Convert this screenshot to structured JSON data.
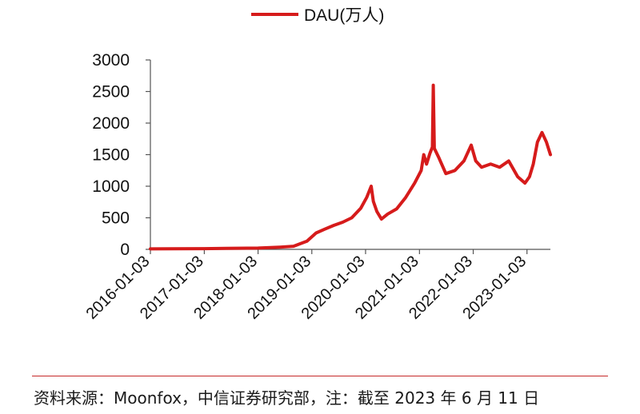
{
  "chart_data": {
    "type": "line",
    "legend": {
      "label": "DAU(万人)",
      "position": "top-center"
    },
    "ylim": [
      0,
      3000
    ],
    "yticks": [
      0,
      500,
      1000,
      1500,
      2000,
      2500,
      3000
    ],
    "ytick_labels": [
      "0",
      "500",
      "1000",
      "1500",
      "2000",
      "2500",
      "3000"
    ],
    "xlim": [
      "2016-01-03",
      "2023-06-11"
    ],
    "xticks": [
      "2016-01-03",
      "2017-01-03",
      "2018-01-03",
      "2019-01-03",
      "2020-01-03",
      "2021-01-03",
      "2022-01-03",
      "2023-01-03"
    ],
    "grid": false,
    "series": [
      {
        "name": "DAU(万人)",
        "color": "#d61b1b",
        "points": [
          [
            "2016-01-03",
            8
          ],
          [
            "2016-06-01",
            9
          ],
          [
            "2017-01-03",
            12
          ],
          [
            "2017-06-01",
            15
          ],
          [
            "2018-01-03",
            20
          ],
          [
            "2018-06-01",
            35
          ],
          [
            "2018-09-01",
            50
          ],
          [
            "2018-12-01",
            130
          ],
          [
            "2019-02-01",
            260
          ],
          [
            "2019-04-01",
            320
          ],
          [
            "2019-06-01",
            380
          ],
          [
            "2019-08-01",
            430
          ],
          [
            "2019-10-01",
            500
          ],
          [
            "2019-12-01",
            650
          ],
          [
            "2020-01-10",
            820
          ],
          [
            "2020-02-10",
            1000
          ],
          [
            "2020-02-25",
            760
          ],
          [
            "2020-03-20",
            600
          ],
          [
            "2020-04-20",
            480
          ],
          [
            "2020-06-01",
            560
          ],
          [
            "2020-08-01",
            640
          ],
          [
            "2020-10-01",
            820
          ],
          [
            "2020-12-01",
            1050
          ],
          [
            "2021-01-15",
            1250
          ],
          [
            "2021-02-01",
            1500
          ],
          [
            "2021-02-20",
            1350
          ],
          [
            "2021-03-15",
            1520
          ],
          [
            "2021-04-01",
            1620
          ],
          [
            "2021-04-07",
            2600
          ],
          [
            "2021-04-14",
            1600
          ],
          [
            "2021-05-15",
            1450
          ],
          [
            "2021-07-01",
            1200
          ],
          [
            "2021-09-01",
            1250
          ],
          [
            "2021-11-01",
            1400
          ],
          [
            "2021-12-20",
            1650
          ],
          [
            "2022-01-20",
            1400
          ],
          [
            "2022-03-01",
            1300
          ],
          [
            "2022-05-01",
            1350
          ],
          [
            "2022-07-01",
            1300
          ],
          [
            "2022-09-01",
            1400
          ],
          [
            "2022-11-01",
            1150
          ],
          [
            "2022-12-20",
            1050
          ],
          [
            "2023-01-20",
            1150
          ],
          [
            "2023-02-15",
            1350
          ],
          [
            "2023-03-15",
            1700
          ],
          [
            "2023-04-15",
            1850
          ],
          [
            "2023-05-15",
            1700
          ],
          [
            "2023-06-11",
            1500
          ]
        ]
      }
    ]
  },
  "source_note": "资料来源：Moonfox，中信证券研究部，注：截至 2023 年 6 月 11 日"
}
